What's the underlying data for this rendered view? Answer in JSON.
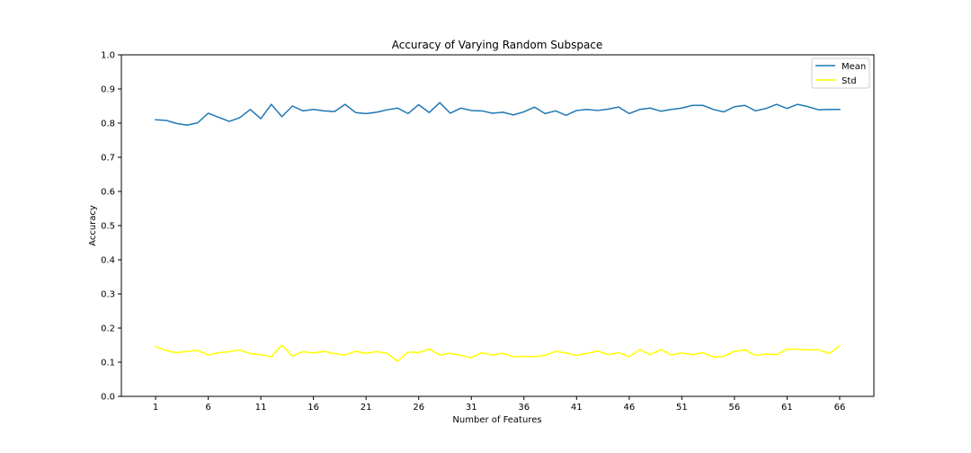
{
  "chart_data": {
    "type": "line",
    "title": "Accuracy of Varying Random Subspace",
    "xlabel": "Number of Features",
    "ylabel": "Accuracy",
    "xlim": [
      -2.25,
      69.25
    ],
    "ylim": [
      0.0,
      1.0
    ],
    "x_ticks": [
      1,
      6,
      11,
      16,
      21,
      26,
      31,
      36,
      41,
      46,
      51,
      56,
      61,
      66
    ],
    "y_ticks": [
      "0.0",
      "0.1",
      "0.2",
      "0.3",
      "0.4",
      "0.5",
      "0.6",
      "0.7",
      "0.8",
      "0.9",
      "1.0"
    ],
    "grid": false,
    "legend_position": "top-right",
    "x": [
      1,
      2,
      3,
      4,
      5,
      6,
      7,
      8,
      9,
      10,
      11,
      12,
      13,
      14,
      15,
      16,
      17,
      18,
      19,
      20,
      21,
      22,
      23,
      24,
      25,
      26,
      27,
      28,
      29,
      30,
      31,
      32,
      33,
      34,
      35,
      36,
      37,
      38,
      39,
      40,
      41,
      42,
      43,
      44,
      45,
      46,
      47,
      48,
      49,
      50,
      51,
      52,
      53,
      54,
      55,
      56,
      57,
      58,
      59,
      60,
      61,
      62,
      63,
      64,
      65,
      66
    ],
    "series": [
      {
        "name": "Mean",
        "color": "#1f77b4",
        "values": [
          0.81,
          0.808,
          0.799,
          0.794,
          0.801,
          0.829,
          0.817,
          0.805,
          0.816,
          0.84,
          0.813,
          0.855,
          0.819,
          0.85,
          0.836,
          0.84,
          0.836,
          0.834,
          0.855,
          0.831,
          0.828,
          0.832,
          0.839,
          0.844,
          0.828,
          0.854,
          0.831,
          0.86,
          0.829,
          0.844,
          0.837,
          0.836,
          0.829,
          0.832,
          0.824,
          0.833,
          0.847,
          0.828,
          0.836,
          0.823,
          0.837,
          0.84,
          0.837,
          0.841,
          0.847,
          0.828,
          0.84,
          0.844,
          0.835,
          0.84,
          0.844,
          0.852,
          0.852,
          0.84,
          0.833,
          0.848,
          0.852,
          0.836,
          0.843,
          0.855,
          0.843,
          0.855,
          0.848,
          0.839,
          0.84,
          0.84
        ]
      },
      {
        "name": "Std",
        "color": "#ffff00",
        "values": [
          0.146,
          0.134,
          0.128,
          0.132,
          0.135,
          0.121,
          0.128,
          0.131,
          0.136,
          0.125,
          0.122,
          0.116,
          0.15,
          0.118,
          0.131,
          0.127,
          0.132,
          0.125,
          0.121,
          0.132,
          0.126,
          0.131,
          0.126,
          0.103,
          0.13,
          0.128,
          0.139,
          0.121,
          0.126,
          0.12,
          0.113,
          0.128,
          0.121,
          0.126,
          0.116,
          0.117,
          0.116,
          0.12,
          0.132,
          0.127,
          0.12,
          0.126,
          0.133,
          0.122,
          0.128,
          0.116,
          0.137,
          0.122,
          0.137,
          0.121,
          0.127,
          0.122,
          0.128,
          0.115,
          0.117,
          0.132,
          0.136,
          0.12,
          0.124,
          0.122,
          0.138,
          0.138,
          0.136,
          0.137,
          0.125,
          0.148
        ]
      }
    ]
  }
}
